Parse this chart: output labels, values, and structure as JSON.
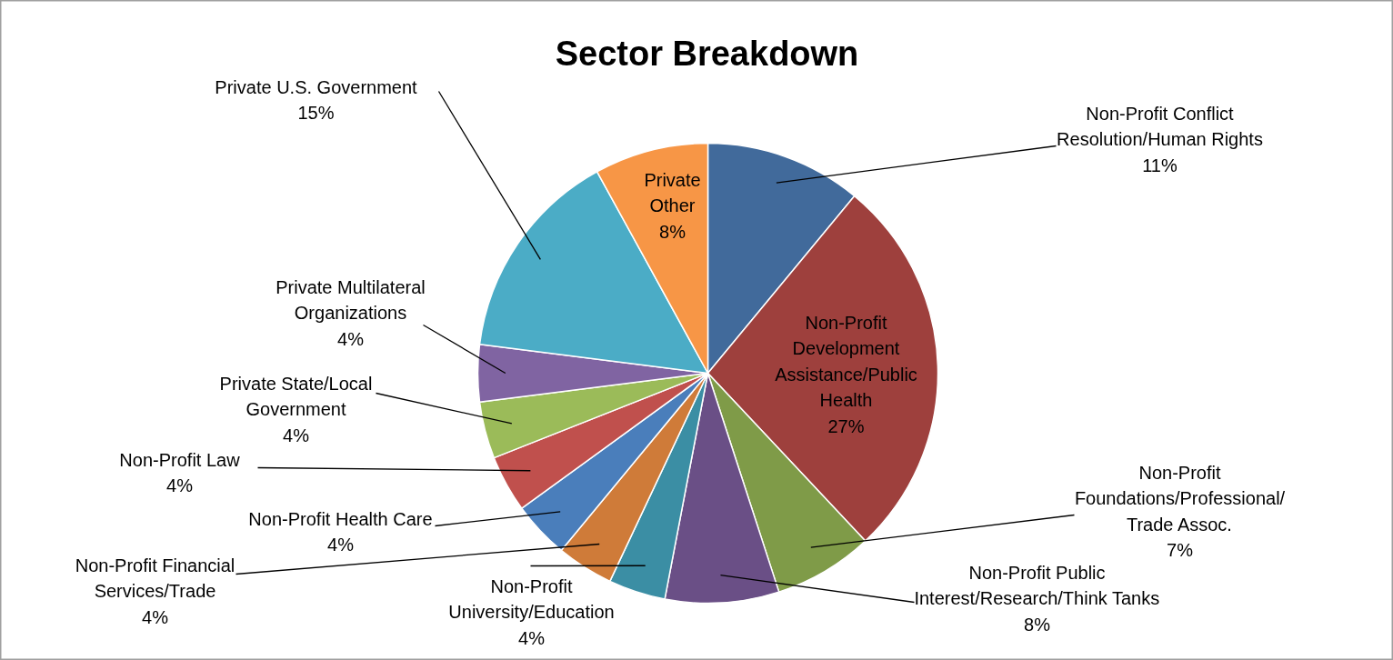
{
  "chart_data": {
    "type": "pie",
    "title": "Sector Breakdown",
    "categories": [
      "Non-Profit Conflict Resolution/Human Rights",
      "Non-Profit Development Assistance/Public Health",
      "Non-Profit Foundations/Professional/Trade Assoc.",
      "Non-Profit Public Interest/Research/Think Tanks",
      "Non-Profit University/Education",
      "Non-Profit Financial Services/Trade",
      "Non-Profit Health Care",
      "Non-Profit Law",
      "Private State/Local Government",
      "Private Multilateral Organizations",
      "Private U.S. Government",
      "Private Other"
    ],
    "values": [
      11,
      27,
      7,
      8,
      4,
      4,
      4,
      4,
      4,
      4,
      15,
      8
    ],
    "value_labels": [
      "11%",
      "27%",
      "7%",
      "8%",
      "4%",
      "4%",
      "4%",
      "4%",
      "4%",
      "4%",
      "15%",
      "8%"
    ],
    "colors": [
      "#416a9b",
      "#9e403d",
      "#7f9b48",
      "#6a4f86",
      "#3b8ea4",
      "#cf7b39",
      "#4a7ebb",
      "#c0504d",
      "#9bbb59",
      "#8064a2",
      "#4bacc6",
      "#f79646"
    ]
  }
}
